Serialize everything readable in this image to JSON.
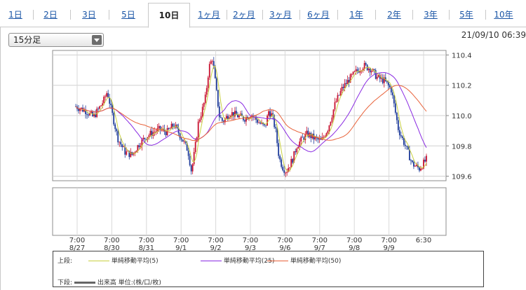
{
  "tabs": [
    {
      "label": "1日",
      "active": false
    },
    {
      "label": "2日",
      "active": false
    },
    {
      "label": "3日",
      "active": false
    },
    {
      "label": "5日",
      "active": false
    },
    {
      "label": "10日",
      "active": true
    },
    {
      "label": "1ヶ月",
      "active": false
    },
    {
      "label": "2ヶ月",
      "active": false
    },
    {
      "label": "3ヶ月",
      "active": false
    },
    {
      "label": "6ヶ月",
      "active": false
    },
    {
      "label": "1年",
      "active": false
    },
    {
      "label": "2年",
      "active": false
    },
    {
      "label": "3年",
      "active": false
    },
    {
      "label": "5年",
      "active": false
    },
    {
      "label": "10年",
      "active": false
    }
  ],
  "interval_select": {
    "value": "15分足"
  },
  "timestamp": "21/09/10 06:39",
  "legend": {
    "upper_label": "上段:",
    "lower_label": "下段:",
    "ma5": "単純移動平均(5)",
    "ma25": "単純移動平均(25)",
    "ma50": "単純移動平均(50)",
    "volume": "出来高 単位:(株/口/枚)"
  },
  "colors": {
    "up": "#c8102e",
    "down": "#1f3c9a",
    "ma5": "#c8d040",
    "ma25": "#8a2be2",
    "ma50": "#e8623a",
    "tab_link": "#1a55a6"
  },
  "chart_data": {
    "type": "candlestick",
    "title": "",
    "price_axis": {
      "ylim": [
        109.57,
        110.43
      ],
      "ticks": [
        "110.4",
        "110.2",
        "110.0",
        "109.8",
        "109.6"
      ]
    },
    "x_tick_labels": [
      {
        "time": "7:00",
        "date": "8/27"
      },
      {
        "time": "7:00",
        "date": "8/30"
      },
      {
        "time": "7:00",
        "date": "8/31"
      },
      {
        "time": "7:00",
        "date": "9/1"
      },
      {
        "time": "7:00",
        "date": "9/2"
      },
      {
        "time": "7:00",
        "date": "9/3"
      },
      {
        "time": "7:00",
        "date": "9/6"
      },
      {
        "time": "7:00",
        "date": "9/7"
      },
      {
        "time": "7:00",
        "date": "9/8"
      },
      {
        "time": "7:00",
        "date": "9/9"
      },
      {
        "time": "6:30",
        "date": ""
      }
    ],
    "price_path": [
      [
        0.0,
        110.06
      ],
      [
        0.03,
        110.03
      ],
      [
        0.05,
        109.99
      ],
      [
        0.07,
        110.06
      ],
      [
        0.08,
        110.1
      ],
      [
        0.09,
        110.16
      ],
      [
        0.1,
        110.05
      ],
      [
        0.12,
        109.85
      ],
      [
        0.14,
        109.76
      ],
      [
        0.16,
        109.74
      ],
      [
        0.18,
        109.81
      ],
      [
        0.2,
        109.86
      ],
      [
        0.22,
        109.89
      ],
      [
        0.24,
        109.91
      ],
      [
        0.26,
        109.89
      ],
      [
        0.28,
        109.94
      ],
      [
        0.3,
        109.86
      ],
      [
        0.32,
        109.77
      ],
      [
        0.33,
        109.63
      ],
      [
        0.34,
        109.78
      ],
      [
        0.35,
        109.96
      ],
      [
        0.36,
        110.03
      ],
      [
        0.37,
        110.12
      ],
      [
        0.38,
        110.32
      ],
      [
        0.39,
        110.38
      ],
      [
        0.4,
        110.18
      ],
      [
        0.41,
        109.99
      ],
      [
        0.42,
        109.96
      ],
      [
        0.44,
        110.02
      ],
      [
        0.46,
        110.0
      ],
      [
        0.48,
        109.98
      ],
      [
        0.5,
        110.01
      ],
      [
        0.52,
        109.96
      ],
      [
        0.54,
        109.92
      ],
      [
        0.55,
        110.03
      ],
      [
        0.56,
        110.0
      ],
      [
        0.57,
        109.9
      ],
      [
        0.58,
        109.72
      ],
      [
        0.59,
        109.66
      ],
      [
        0.6,
        109.63
      ],
      [
        0.62,
        109.72
      ],
      [
        0.63,
        109.8
      ],
      [
        0.64,
        109.83
      ],
      [
        0.66,
        109.88
      ],
      [
        0.68,
        109.85
      ],
      [
        0.7,
        109.83
      ],
      [
        0.72,
        109.92
      ],
      [
        0.74,
        110.08
      ],
      [
        0.76,
        110.18
      ],
      [
        0.78,
        110.24
      ],
      [
        0.8,
        110.29
      ],
      [
        0.82,
        110.33
      ],
      [
        0.84,
        110.31
      ],
      [
        0.86,
        110.25
      ],
      [
        0.88,
        110.23
      ],
      [
        0.9,
        110.17
      ],
      [
        0.91,
        110.04
      ],
      [
        0.92,
        109.91
      ],
      [
        0.94,
        109.8
      ],
      [
        0.96,
        109.68
      ],
      [
        0.98,
        109.65
      ],
      [
        1.0,
        109.71
      ]
    ],
    "series": [
      {
        "name": "単純移動平均(5)"
      },
      {
        "name": "単純移動平均(25)"
      },
      {
        "name": "単純移動平均(50)"
      }
    ],
    "volume_panel": {
      "present": true,
      "values": []
    }
  }
}
